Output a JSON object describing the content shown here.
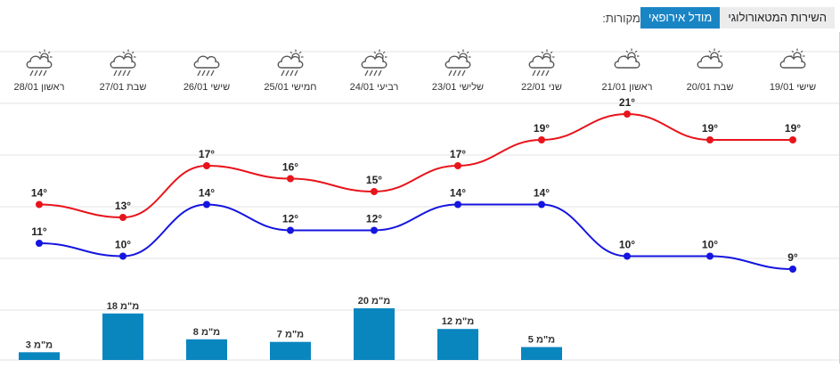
{
  "sources": {
    "label": "מקורות:",
    "options": [
      "מודל אירופאי",
      "השירות המטאורולוגי"
    ],
    "selected": "מודל אירופאי"
  },
  "colors": {
    "max_line": "#e8141b",
    "min_line": "#1515e0",
    "rain_bar": "#0a86bf",
    "accent_button": "#1a85c5"
  },
  "chart_data": {
    "type": "line",
    "categories": [
      {
        "day": "שישי",
        "date": "19/01",
        "icon": "partly-cloudy-icon"
      },
      {
        "day": "שבת",
        "date": "20/01",
        "icon": "partly-cloudy-icon"
      },
      {
        "day": "ראשון",
        "date": "21/01",
        "icon": "partly-cloudy-icon"
      },
      {
        "day": "שני",
        "date": "22/01",
        "icon": "sun-cloud-rain-icon"
      },
      {
        "day": "שלישי",
        "date": "23/01",
        "icon": "sun-cloud-rain-icon"
      },
      {
        "day": "רביעי",
        "date": "24/01",
        "icon": "sun-cloud-rain-icon"
      },
      {
        "day": "חמישי",
        "date": "25/01",
        "icon": "sun-cloud-rain-icon"
      },
      {
        "day": "שישי",
        "date": "26/01",
        "icon": "cloud-rain-icon"
      },
      {
        "day": "שבת",
        "date": "27/01",
        "icon": "sun-cloud-rain-icon"
      },
      {
        "day": "ראשון",
        "date": "28/01",
        "icon": "sun-cloud-rain-icon"
      }
    ],
    "series": [
      {
        "key": "max",
        "values": [
          19,
          19,
          21,
          19,
          17,
          15,
          16,
          17,
          13,
          14
        ]
      },
      {
        "key": "min",
        "values": [
          9,
          10,
          10,
          14,
          14,
          12,
          12,
          14,
          10,
          11
        ]
      }
    ],
    "temp_unit": "°",
    "rain": {
      "unit": "מ\"מ",
      "values": [
        null,
        null,
        null,
        5,
        12,
        20,
        7,
        8,
        18,
        3
      ]
    },
    "order": "right-to-left",
    "ylim": [
      8,
      23
    ],
    "grid": true
  }
}
